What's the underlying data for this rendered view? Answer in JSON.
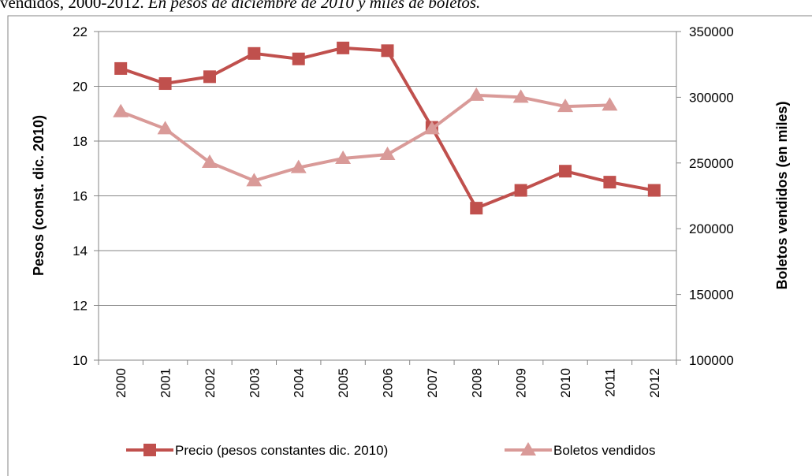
{
  "chart_data": {
    "type": "line",
    "title": "vendidos, 2000-2012.",
    "subtitle": "En pesos de diciembre de 2010 y miles de boletos.",
    "y_label": "Pesos (const. dic. 2010)",
    "y2_label": "Boletos vendidos (en miles)",
    "categories": [
      "2000",
      "2001",
      "2002",
      "2003",
      "2004",
      "2005",
      "2006",
      "2007",
      "2008",
      "2009",
      "2010",
      "2011",
      "2012"
    ],
    "series": [
      {
        "name": "Precio (pesos constantes dic. 2010)",
        "color": "#c0504d",
        "marker": "square",
        "values": [
          20.65,
          20.1,
          20.35,
          21.2,
          21.0,
          21.4,
          21.3,
          18.5,
          15.55,
          16.2,
          16.9,
          16.5,
          16.2
        ]
      },
      {
        "name": "Boletos vendidos",
        "color": "#d99a98",
        "marker": "triangle",
        "axis": "y2",
        "values": [
          289000,
          276000,
          250500,
          236500,
          246500,
          253500,
          256500,
          276000,
          301500,
          300000,
          293000,
          294000,
          null
        ]
      }
    ],
    "ylim": [
      10,
      22
    ],
    "yticks": [
      10,
      12,
      14,
      16,
      18,
      20,
      22
    ],
    "y2lim": [
      100000,
      350000
    ],
    "y2ticks": [
      100000,
      150000,
      200000,
      250000,
      300000,
      350000
    ],
    "grid": true,
    "legend": "bottom"
  }
}
